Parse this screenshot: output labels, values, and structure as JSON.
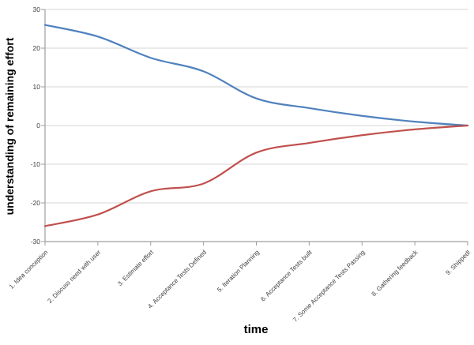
{
  "chart_data": {
    "type": "line",
    "title": "",
    "xlabel": "time",
    "ylabel": "understanding of remaining effort",
    "ylim": [
      -30,
      30
    ],
    "yticks": [
      30,
      20,
      10,
      0,
      -10,
      -20,
      -30
    ],
    "grid": true,
    "legend": "none",
    "smooth_lines": true,
    "categories": [
      "1. Idea conception",
      "2. Discuss need with user",
      "3. Estimate effort",
      "4. Acceptance Tests Defined",
      "5. Iteration Planning",
      "6. Acceptance Tests built",
      "7. Some Acceptance Tests Passing",
      "8. Gathering feedback",
      "9. Shipped!"
    ],
    "series": [
      {
        "name": "blue",
        "color": "#4f81bd",
        "values": [
          26,
          23,
          17.5,
          14,
          7,
          4.5,
          2.5,
          1,
          0
        ]
      },
      {
        "name": "red",
        "color": "#c0504d",
        "values": [
          -26,
          -23,
          -17,
          -15,
          -7,
          -4.5,
          -2.5,
          -1,
          0
        ]
      }
    ],
    "colors": {
      "gridline": "#d6d6d6",
      "axis": "#9e9e9e",
      "tick_label": "#404040",
      "title_text": "#000000",
      "background": "#ffffff"
    }
  }
}
